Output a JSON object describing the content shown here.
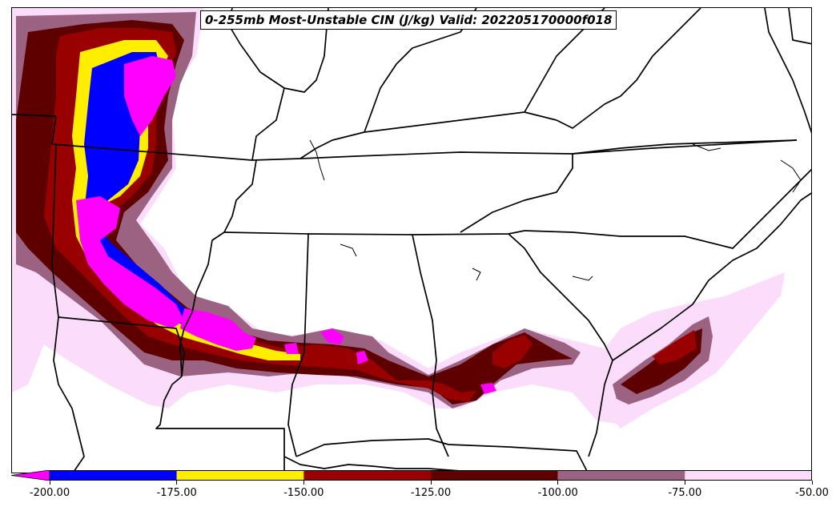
{
  "map": {
    "title": "0-255mb Most-Unstable CIN (J/kg) Valid: 202205170000f018",
    "colors": {
      "magenta": "#ff00ff",
      "blue": "#0000ff",
      "yellow": "#ffee00",
      "red": "#990000",
      "dark_red": "#5e0000",
      "mauve": "#9b6282",
      "pink": "#fbdcfb",
      "boundary": "#000000"
    }
  },
  "colorbar": {
    "extend": "min",
    "tick_labels": [
      "-200.00",
      "-175.00",
      "-150.00",
      "-125.00",
      "-100.00",
      "-75.00",
      "-50.00"
    ],
    "bins": [
      {
        "from": -200,
        "to": -175,
        "color": "#0000ff"
      },
      {
        "from": -175,
        "to": -150,
        "color": "#ffee00"
      },
      {
        "from": -150,
        "to": -125,
        "color": "#990000"
      },
      {
        "from": -125,
        "to": -100,
        "color": "#5e0000"
      },
      {
        "from": -100,
        "to": -75,
        "color": "#9b6282"
      },
      {
        "from": -75,
        "to": -50,
        "color": "#fbdcfb"
      }
    ],
    "under_color": "#ff00ff"
  }
}
